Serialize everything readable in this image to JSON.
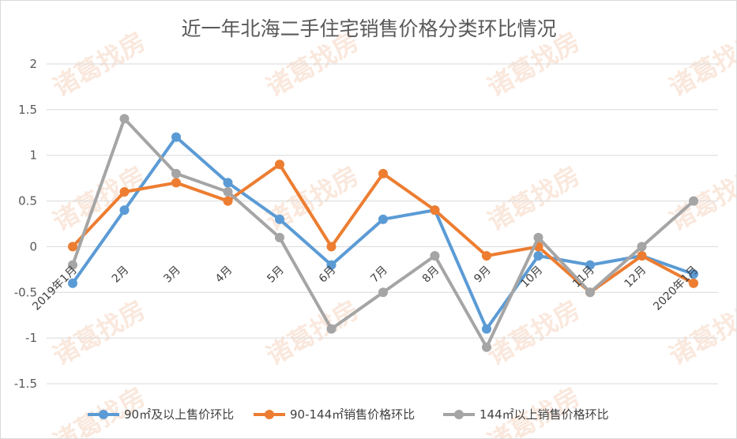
{
  "watermark": "诸葛找房",
  "chart_data": {
    "type": "line",
    "title": "近一年北海二手住宅销售价格分类环比情况",
    "xlabel": "",
    "ylabel": "",
    "ylim": [
      -1.5,
      2
    ],
    "yticks": [
      "2",
      "1.5",
      "1",
      "0.5",
      "0",
      "-0.5",
      "-1",
      "-1.5"
    ],
    "ytick_values": [
      2,
      1.5,
      1,
      0.5,
      0,
      -0.5,
      -1,
      -1.5
    ],
    "grid": true,
    "legend_position": "bottom",
    "categories": [
      "2019年1月",
      "2月",
      "3月",
      "4月",
      "5月",
      "6月",
      "7月",
      "8月",
      "9月",
      "10月",
      "11月",
      "12月",
      "2020年1月"
    ],
    "series": [
      {
        "name": "90㎡及以上售价环比",
        "color": "#5b9bd5",
        "values": [
          -0.4,
          0.4,
          1.2,
          0.7,
          0.3,
          -0.2,
          0.3,
          0.4,
          -0.9,
          -0.1,
          -0.2,
          -0.1,
          -0.3
        ]
      },
      {
        "name": "90-144㎡销售价格环比",
        "color": "#ed7d31",
        "values": [
          0,
          0.6,
          0.7,
          0.5,
          0.9,
          0,
          0.8,
          0.4,
          -0.1,
          0,
          -0.5,
          -0.1,
          -0.4
        ]
      },
      {
        "name": "144㎡以上销售价格环比",
        "color": "#a5a5a5",
        "values": [
          -0.2,
          1.4,
          0.8,
          0.6,
          0.1,
          -0.9,
          -0.5,
          -0.1,
          -1.1,
          0.1,
          -0.5,
          0,
          0.5
        ]
      }
    ]
  }
}
